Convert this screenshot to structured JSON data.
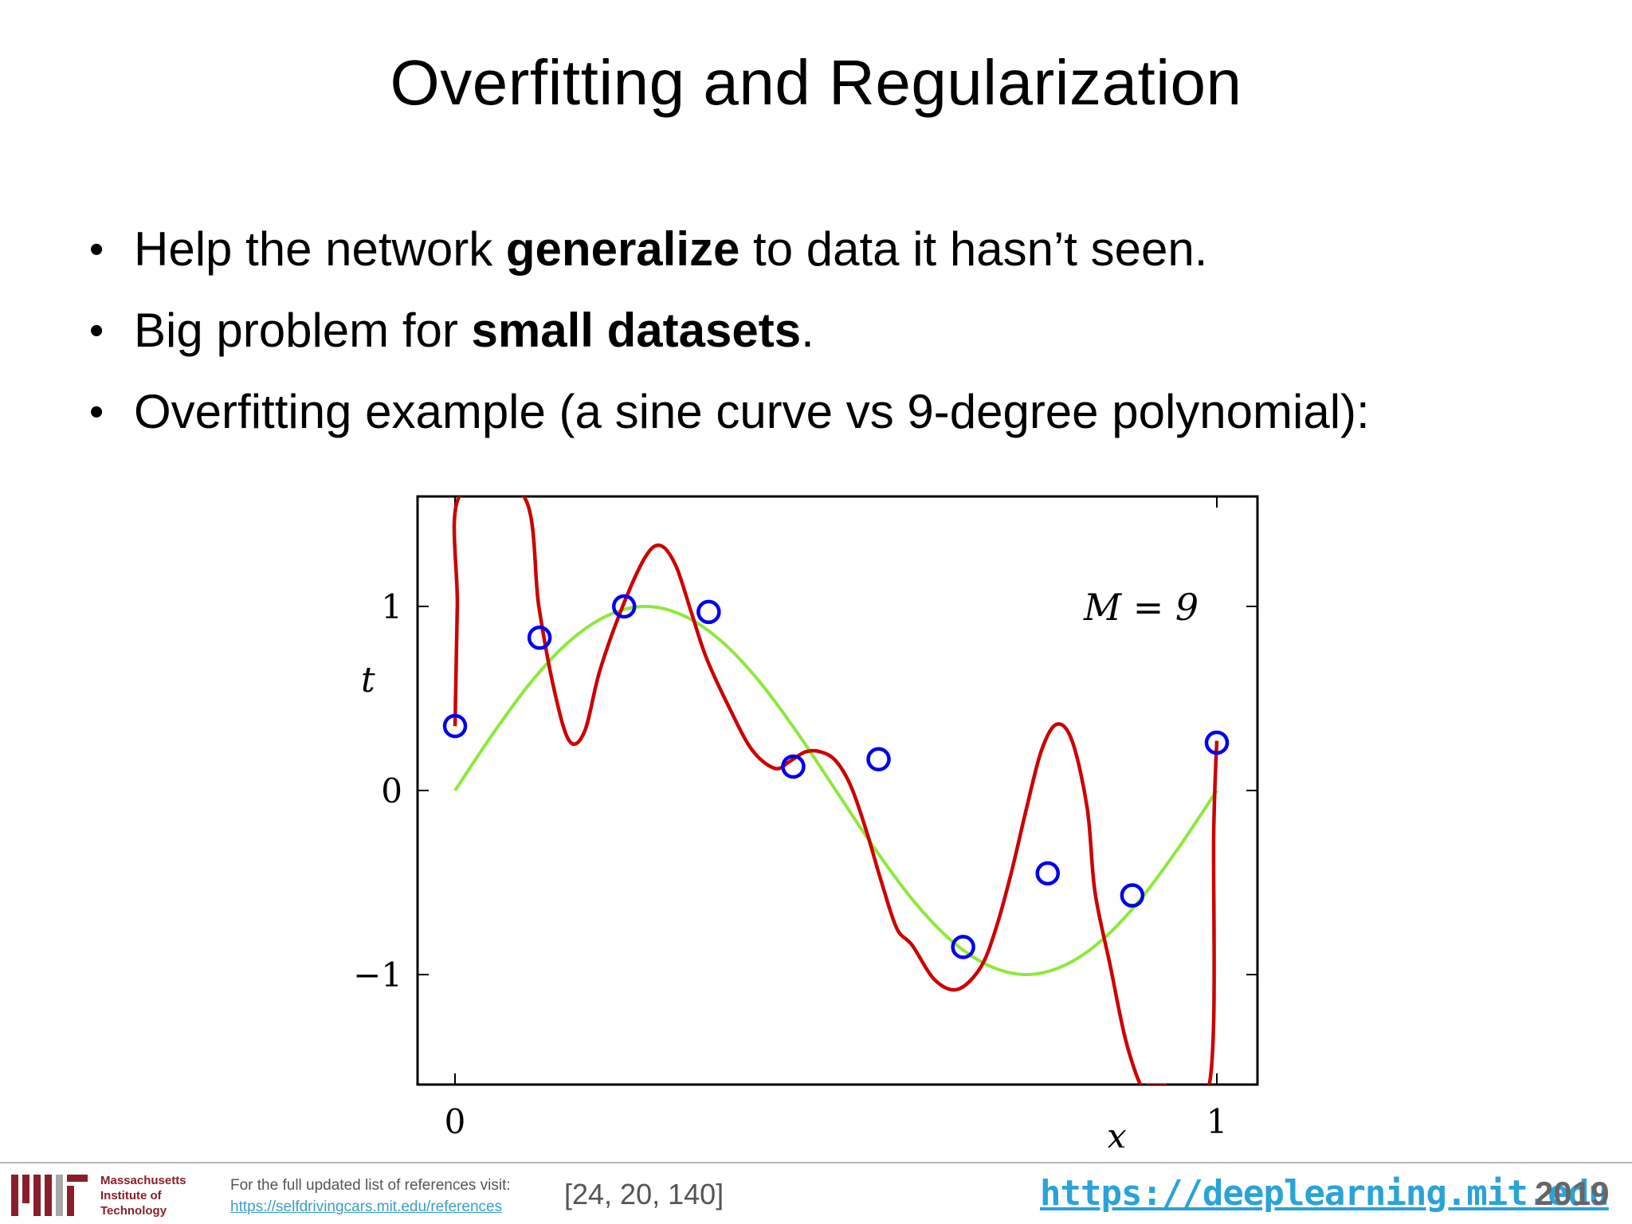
{
  "slide": {
    "title": "Overfitting and Regularization",
    "bullets": [
      {
        "before": "Help the network ",
        "bold": "generalize",
        "after": " to data it hasn’t seen."
      },
      {
        "before": "Big problem for ",
        "bold": "small datasets",
        "after": "."
      },
      {
        "before": "Overfitting example (a sine curve vs 9-degree polynomial):",
        "bold": "",
        "after": ""
      }
    ],
    "bullet_glyph": "•"
  },
  "chart_data": {
    "type": "line",
    "xlabel": "x",
    "ylabel": "t",
    "annotation": "M = 9",
    "xlim": [
      -0.05,
      1.05
    ],
    "ylim": [
      -1.6,
      1.6
    ],
    "x_ticks": [
      {
        "value": 0,
        "label": "0"
      },
      {
        "value": 1,
        "label": "1"
      }
    ],
    "y_ticks": [
      {
        "value": 1,
        "label": "1"
      },
      {
        "value": 0,
        "label": "0"
      },
      {
        "value": -1,
        "label": "−1"
      }
    ],
    "grid": false,
    "series": [
      {
        "kind": "line",
        "color": "#8ee83a",
        "x": [
          0,
          0.05,
          0.1,
          0.15,
          0.2,
          0.25,
          0.3,
          0.35,
          0.4,
          0.45,
          0.5,
          0.55,
          0.6,
          0.65,
          0.7,
          0.75,
          0.8,
          0.85,
          0.9,
          0.95,
          1.0
        ],
        "y": [
          0,
          0.31,
          0.59,
          0.81,
          0.95,
          1.0,
          0.95,
          0.81,
          0.59,
          0.31,
          0,
          -0.31,
          -0.59,
          -0.81,
          -0.95,
          -1.0,
          -0.95,
          -0.81,
          -0.59,
          -0.31,
          0
        ]
      },
      {
        "kind": "line",
        "color": "#cc0000",
        "x": [
          0,
          0.003,
          0.006,
          0.09,
          0.11,
          0.13,
          0.15,
          0.17,
          0.19,
          0.22,
          0.25,
          0.27,
          0.29,
          0.31,
          0.33,
          0.36,
          0.39,
          0.42,
          0.44,
          0.46,
          0.48,
          0.5,
          0.52,
          0.54,
          0.56,
          0.58,
          0.6,
          0.63,
          0.66,
          0.69,
          0.71,
          0.73,
          0.75,
          0.77,
          0.79,
          0.81,
          0.83,
          0.84,
          0.86,
          0.88,
          0.9,
          0.91,
          0.92,
          0.93,
          0.99,
          0.996,
          1.0
        ],
        "y": [
          0.35,
          1.0,
          1.6,
          1.6,
          1.0,
          0.55,
          0.27,
          0.32,
          0.65,
          1.0,
          1.27,
          1.33,
          1.22,
          0.97,
          0.72,
          0.45,
          0.22,
          0.12,
          0.16,
          0.21,
          0.21,
          0.16,
          0.02,
          -0.22,
          -0.5,
          -0.75,
          -0.84,
          -1.03,
          -1.08,
          -0.96,
          -0.75,
          -0.45,
          -0.1,
          0.22,
          0.36,
          0.27,
          -0.1,
          -0.55,
          -0.95,
          -1.35,
          -1.6,
          -1.6,
          -1.6,
          -1.6,
          -1.6,
          -0.2,
          0.27
        ]
      },
      {
        "kind": "scatter",
        "color": "#0000ee",
        "x": [
          0,
          0.111,
          0.222,
          0.333,
          0.444,
          0.556,
          0.667,
          0.778,
          0.889,
          1.0
        ],
        "y": [
          0.35,
          0.83,
          1.0,
          0.97,
          0.13,
          0.17,
          -0.85,
          -0.45,
          -0.57,
          0.26
        ]
      }
    ]
  },
  "footer": {
    "institution": [
      "Massachusetts",
      "Institute of",
      "Technology"
    ],
    "refs_note": "For the full updated list of references visit:",
    "refs_url": "https://selfdrivingcars.mit.edu/references",
    "citation": "[24, 20, 140]",
    "course_url": "https://deeplearning.mit.edu",
    "year": "2019",
    "brand_color": "#8a1e2b"
  }
}
